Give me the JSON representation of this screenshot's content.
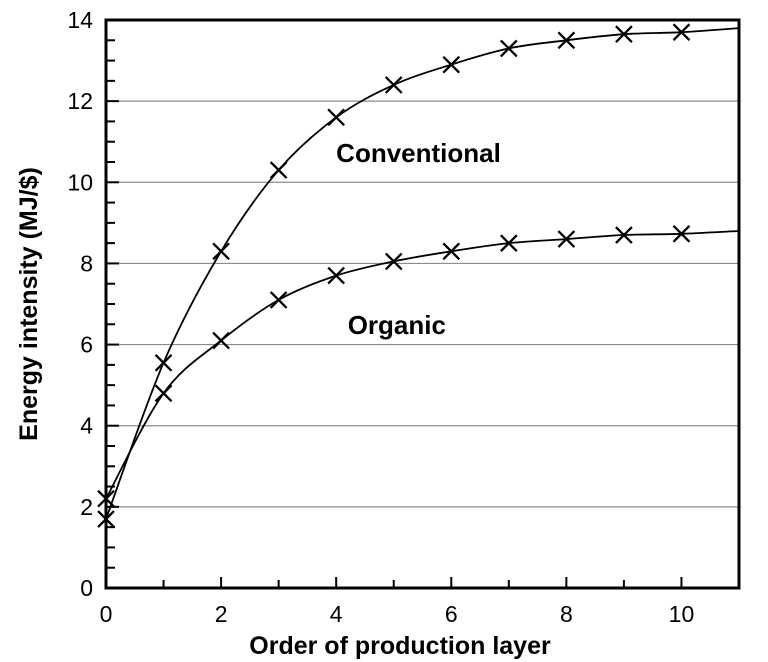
{
  "chart_data": {
    "type": "line",
    "title": "",
    "xlabel": "Order of production layer",
    "ylabel": "Energy intensity (MJ/$)",
    "xlim": [
      0,
      11
    ],
    "ylim": [
      0,
      14
    ],
    "x": [
      0,
      1,
      2,
      3,
      4,
      5,
      6,
      7,
      8,
      9,
      10,
      11
    ],
    "series": [
      {
        "name": "Conventional",
        "values": [
          1.7,
          5.55,
          8.3,
          10.3,
          11.6,
          12.4,
          12.9,
          13.3,
          13.5,
          13.65,
          13.7,
          13.8
        ],
        "marker": "x",
        "markers_at": [
          0,
          1,
          2,
          3,
          4,
          5,
          6,
          7,
          8,
          9,
          10
        ]
      },
      {
        "name": "Organic",
        "values": [
          2.2,
          4.8,
          6.1,
          7.1,
          7.7,
          8.05,
          8.3,
          8.5,
          8.6,
          8.7,
          8.73,
          8.8
        ],
        "marker": "x",
        "markers_at": [
          0,
          1,
          2,
          3,
          4,
          5,
          6,
          7,
          8,
          9,
          10
        ]
      }
    ],
    "x_ticks": [
      {
        "value": 0,
        "label": "0"
      },
      {
        "value": 2,
        "label": "2"
      },
      {
        "value": 4,
        "label": "4"
      },
      {
        "value": 6,
        "label": "6"
      },
      {
        "value": 8,
        "label": "8"
      },
      {
        "value": 10,
        "label": "10"
      }
    ],
    "x_minor_ticks": [
      1,
      3,
      5,
      7,
      9
    ],
    "y_ticks": [
      {
        "value": 0,
        "label": "0"
      },
      {
        "value": 2,
        "label": "2"
      },
      {
        "value": 4,
        "label": "4"
      },
      {
        "value": 6,
        "label": "6"
      },
      {
        "value": 8,
        "label": "8"
      },
      {
        "value": 10,
        "label": "10"
      },
      {
        "value": 12,
        "label": "12"
      },
      {
        "value": 14,
        "label": "14"
      }
    ],
    "y_minor_step": 0.5,
    "gridlines": {
      "horizontal_at": [
        2,
        4,
        6,
        8,
        10,
        12
      ],
      "visible": true
    },
    "legend_position": "none",
    "annotations": [
      {
        "text": "Conventional",
        "x": 4.0,
        "y": 10.5,
        "anchor": "start"
      },
      {
        "text": "Organic",
        "x": 4.2,
        "y": 6.26,
        "anchor": "start"
      }
    ],
    "colors": {
      "line": "#000000",
      "marker": "#000000",
      "grid": "#8c8c8c",
      "frame": "#000000",
      "text": "#000000",
      "background": "#ffffff"
    }
  }
}
